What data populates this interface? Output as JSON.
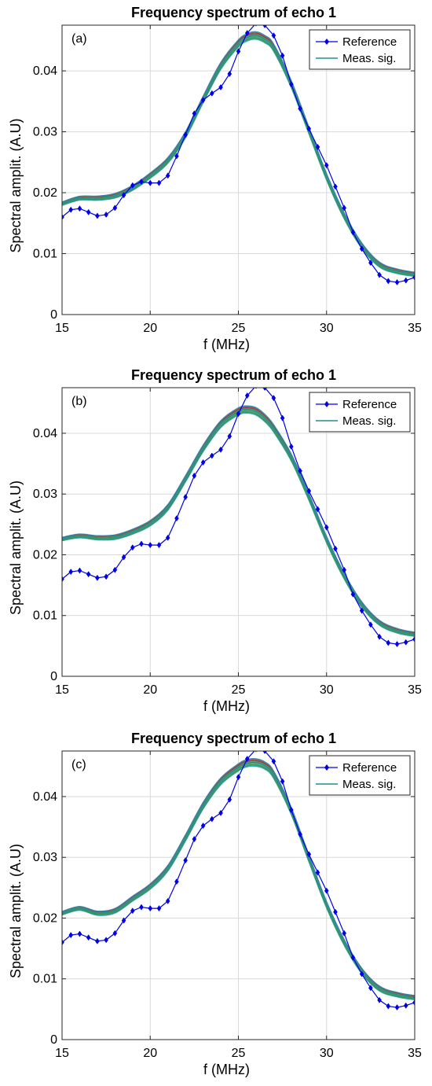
{
  "colors": {
    "reference": "#0000e6",
    "meas_palette": [
      "#1f9e9e",
      "#2e8b57",
      "#3a9d6a",
      "#5b8f3c",
      "#8b2a2a",
      "#a03030",
      "#2a7fa0",
      "#4aa88a"
    ],
    "grid": "#d9d9d9",
    "axis": "#262626"
  },
  "chart_data": [
    {
      "type": "line",
      "panel": "(a)",
      "title": "Frequency spectrum of echo 1",
      "xlabel": "f (MHz)",
      "ylabel": "Spectral amplit. (A.U)",
      "xlim": [
        15,
        35
      ],
      "ylim": [
        0,
        0.0475
      ],
      "xticks": [
        15,
        20,
        25,
        30,
        35
      ],
      "yticks": [
        0,
        0.01,
        0.02,
        0.03,
        0.04
      ],
      "ytick_labels": [
        "0",
        "0.01",
        "0.02",
        "0.03",
        "0.04"
      ],
      "grid": true,
      "legend": {
        "position": "top-right",
        "entries": [
          "Reference",
          "Meas. sig."
        ]
      },
      "series": [
        {
          "name": "Reference",
          "marker": "diamond",
          "x": [
            15,
            15.5,
            16,
            16.5,
            17,
            17.5,
            18,
            18.5,
            19,
            19.5,
            20,
            20.5,
            21,
            21.5,
            22,
            22.5,
            23,
            23.5,
            24,
            24.5,
            25,
            25.5,
            26,
            26.5,
            27,
            27.5,
            28,
            28.5,
            29,
            29.5,
            30,
            30.5,
            31,
            31.5,
            32,
            32.5,
            33,
            33.5,
            34,
            34.5,
            35
          ],
          "y": [
            0.016,
            0.0172,
            0.0174,
            0.0168,
            0.0162,
            0.0164,
            0.0175,
            0.0196,
            0.0212,
            0.0218,
            0.0216,
            0.0216,
            0.0228,
            0.026,
            0.0295,
            0.033,
            0.0352,
            0.0363,
            0.0373,
            0.0395,
            0.0432,
            0.0462,
            0.0478,
            0.0475,
            0.0458,
            0.0425,
            0.0378,
            0.0338,
            0.0305,
            0.0275,
            0.0245,
            0.021,
            0.0175,
            0.0135,
            0.0108,
            0.0085,
            0.0065,
            0.0055,
            0.0053,
            0.0056,
            0.0061
          ]
        },
        {
          "name": "Meas. sig.",
          "x": [
            15,
            16,
            17,
            18,
            19,
            20,
            21,
            22,
            23,
            24,
            25,
            25.5,
            26,
            26.5,
            27,
            28,
            29,
            30,
            31,
            32,
            33,
            34,
            35
          ],
          "y": [
            0.0182,
            0.0191,
            0.0191,
            0.0195,
            0.0208,
            0.0228,
            0.0253,
            0.0295,
            0.0353,
            0.0408,
            0.0445,
            0.0455,
            0.0458,
            0.0452,
            0.0438,
            0.0378,
            0.0302,
            0.0226,
            0.0162,
            0.0113,
            0.0082,
            0.0071,
            0.0066
          ]
        }
      ]
    },
    {
      "type": "line",
      "panel": "(b)",
      "title": "Frequency spectrum of echo 1",
      "xlabel": "f (MHz)",
      "ylabel": "Spectral amplit. (A.U)",
      "xlim": [
        15,
        35
      ],
      "ylim": [
        0,
        0.0475
      ],
      "xticks": [
        15,
        20,
        25,
        30,
        35
      ],
      "yticks": [
        0,
        0.01,
        0.02,
        0.03,
        0.04
      ],
      "ytick_labels": [
        "0",
        "0.01",
        "0.02",
        "0.03",
        "0.04"
      ],
      "grid": true,
      "legend": {
        "position": "top-right",
        "entries": [
          "Reference",
          "Meas. sig."
        ]
      },
      "series": [
        {
          "name": "Reference",
          "marker": "diamond",
          "x": [
            15,
            15.5,
            16,
            16.5,
            17,
            17.5,
            18,
            18.5,
            19,
            19.5,
            20,
            20.5,
            21,
            21.5,
            22,
            22.5,
            23,
            23.5,
            24,
            24.5,
            25,
            25.5,
            26,
            26.5,
            27,
            27.5,
            28,
            28.5,
            29,
            29.5,
            30,
            30.5,
            31,
            31.5,
            32,
            32.5,
            33,
            33.5,
            34,
            34.5,
            35
          ],
          "y": [
            0.016,
            0.0172,
            0.0174,
            0.0168,
            0.0162,
            0.0164,
            0.0175,
            0.0196,
            0.0212,
            0.0218,
            0.0216,
            0.0216,
            0.0228,
            0.026,
            0.0295,
            0.033,
            0.0352,
            0.0363,
            0.0373,
            0.0395,
            0.0432,
            0.0462,
            0.0478,
            0.0475,
            0.0458,
            0.0425,
            0.0378,
            0.0338,
            0.0305,
            0.0275,
            0.0245,
            0.021,
            0.0175,
            0.0135,
            0.0108,
            0.0085,
            0.0065,
            0.0055,
            0.0053,
            0.0056,
            0.0061
          ]
        },
        {
          "name": "Meas. sig.",
          "x": [
            15,
            16,
            17,
            18,
            19,
            20,
            21,
            22,
            23,
            24,
            25,
            25.5,
            26,
            26.5,
            27,
            28,
            29,
            30,
            31,
            32,
            33,
            34,
            35
          ],
          "y": [
            0.0226,
            0.0231,
            0.0228,
            0.0229,
            0.0238,
            0.0252,
            0.0278,
            0.0325,
            0.0375,
            0.0415,
            0.0436,
            0.0439,
            0.0436,
            0.0425,
            0.0408,
            0.036,
            0.0295,
            0.0225,
            0.0165,
            0.0118,
            0.0088,
            0.0075,
            0.0069
          ]
        }
      ]
    },
    {
      "type": "line",
      "panel": "(c)",
      "title": "Frequency spectrum of echo 1",
      "xlabel": "f (MHz)",
      "ylabel": "Spectral amplit. (A.U)",
      "xlim": [
        15,
        35
      ],
      "ylim": [
        0,
        0.0475
      ],
      "xticks": [
        15,
        20,
        25,
        30,
        35
      ],
      "yticks": [
        0,
        0.01,
        0.02,
        0.03,
        0.04
      ],
      "ytick_labels": [
        "0",
        "0.01",
        "0.02",
        "0.03",
        "0.04"
      ],
      "grid": true,
      "legend": {
        "position": "top-right",
        "entries": [
          "Reference",
          "Meas. sig."
        ]
      },
      "series": [
        {
          "name": "Reference",
          "marker": "diamond",
          "x": [
            15,
            15.5,
            16,
            16.5,
            17,
            17.5,
            18,
            18.5,
            19,
            19.5,
            20,
            20.5,
            21,
            21.5,
            22,
            22.5,
            23,
            23.5,
            24,
            24.5,
            25,
            25.5,
            26,
            26.5,
            27,
            27.5,
            28,
            28.5,
            29,
            29.5,
            30,
            30.5,
            31,
            31.5,
            32,
            32.5,
            33,
            33.5,
            34,
            34.5,
            35
          ],
          "y": [
            0.016,
            0.0172,
            0.0174,
            0.0168,
            0.0162,
            0.0164,
            0.0175,
            0.0196,
            0.0212,
            0.0218,
            0.0216,
            0.0216,
            0.0228,
            0.026,
            0.0295,
            0.033,
            0.0352,
            0.0363,
            0.0373,
            0.0395,
            0.0432,
            0.0462,
            0.0478,
            0.0475,
            0.0458,
            0.0425,
            0.0378,
            0.0338,
            0.0305,
            0.0275,
            0.0245,
            0.021,
            0.0175,
            0.0135,
            0.0108,
            0.0085,
            0.0065,
            0.0055,
            0.0053,
            0.0056,
            0.0061
          ]
        },
        {
          "name": "Meas. sig.",
          "x": [
            15,
            16,
            17,
            18,
            19,
            20,
            21,
            22,
            23,
            24,
            25,
            25.5,
            26,
            26.5,
            27,
            28,
            29,
            30,
            31,
            32,
            33,
            34,
            35
          ],
          "y": [
            0.0208,
            0.0216,
            0.0208,
            0.0212,
            0.0232,
            0.0252,
            0.0282,
            0.0332,
            0.0385,
            0.0425,
            0.0448,
            0.0455,
            0.0456,
            0.0451,
            0.0436,
            0.0376,
            0.0298,
            0.0222,
            0.016,
            0.0113,
            0.0084,
            0.0074,
            0.0069
          ]
        }
      ]
    }
  ]
}
